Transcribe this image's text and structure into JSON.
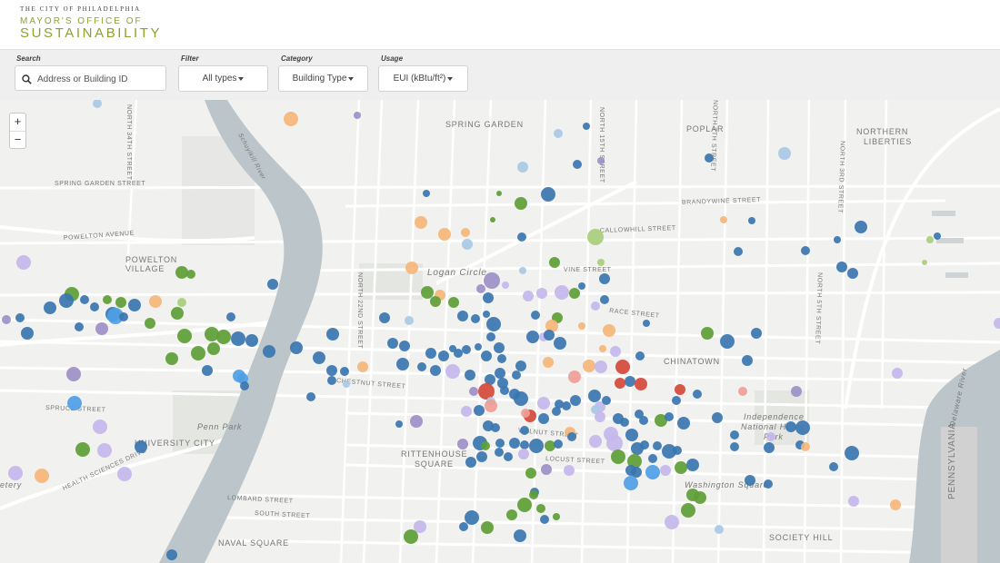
{
  "header": {
    "city": "THE CITY OF PHILADELPHIA",
    "office": "MAYOR'S OFFICE OF",
    "unit": "SUSTAINABILITY"
  },
  "controls": {
    "search": {
      "label": "Search",
      "placeholder": "Address or Building ID"
    },
    "filter": {
      "label": "Filter",
      "value": "All types"
    },
    "category": {
      "label": "Category",
      "value": "Building Type"
    },
    "usage": {
      "label": "Usage",
      "value": "EUI (kBtu/ft²)"
    }
  },
  "map": {
    "zoom_in": "+",
    "zoom_out": "−",
    "colors": {
      "water": "#bcc5c9",
      "road": "#ffffff",
      "park": "#e4e6e1",
      "label": "#777777"
    },
    "place_labels": [
      {
        "text": "SPRING GARDEN",
        "size": 9
      },
      {
        "text": "POPLAR",
        "size": 9
      },
      {
        "text": "NORTHERN",
        "size": 9
      },
      {
        "text": "LIBERTIES",
        "size": 9
      },
      {
        "text": "POWELTON",
        "size": 9
      },
      {
        "text": "VILLAGE",
        "size": 9
      },
      {
        "text": "Logan Circle",
        "size": 10,
        "italic": true
      },
      {
        "text": "CHINATOWN",
        "size": 9
      },
      {
        "text": "Independence",
        "size": 9,
        "italic": true
      },
      {
        "text": "National Hi",
        "size": 9,
        "italic": true
      },
      {
        "text": "Park",
        "size": 9,
        "italic": true
      },
      {
        "text": "Penn Park",
        "size": 9,
        "italic": true
      },
      {
        "text": "UNIVERSITY CITY",
        "size": 9
      },
      {
        "text": "RITTENHOUSE",
        "size": 9
      },
      {
        "text": "SQUARE",
        "size": 9
      },
      {
        "text": "Washington Square",
        "size": 9,
        "italic": true
      },
      {
        "text": "NAVAL SQUARE",
        "size": 9
      },
      {
        "text": "SOCIETY HILL",
        "size": 9
      },
      {
        "text": "etery",
        "size": 9,
        "italic": true
      },
      {
        "text": "POWELTON AVENUE",
        "size": 7
      },
      {
        "text": "SPRING GARDEN STREET",
        "size": 7
      },
      {
        "text": "BRANDYWINE STREET",
        "size": 7
      },
      {
        "text": "CALLOWHILL STREET",
        "size": 7
      },
      {
        "text": "VINE STREET",
        "size": 7
      },
      {
        "text": "RACE STREET",
        "size": 7
      },
      {
        "text": "CHESTNUT STREET",
        "size": 7
      },
      {
        "text": "WALNUT STREET",
        "size": 7
      },
      {
        "text": "SPRUCE STREET",
        "size": 7
      },
      {
        "text": "LOCUST STREET",
        "size": 7
      },
      {
        "text": "LOMBARD STREET",
        "size": 7
      },
      {
        "text": "SOUTH STREET",
        "size": 7
      },
      {
        "text": "Schuylkill River",
        "size": 7,
        "italic": true
      },
      {
        "text": "Delaware River",
        "size": 8,
        "italic": true
      },
      {
        "text": "PENNSYLVANIA",
        "size": 10
      },
      {
        "text": "HEALTH SCIENCES DRIVE",
        "size": 7
      },
      {
        "text": "NORTH 34TH STREET",
        "size": 7
      },
      {
        "text": "NORTH 22ND STREET",
        "size": 7
      },
      {
        "text": "NORTH 15TH STREET",
        "size": 7
      },
      {
        "text": "NORTH 7TH STREET",
        "size": 7
      },
      {
        "text": "NORTH 3RD STREET",
        "size": 7
      },
      {
        "text": "NORTH 5TH STREET",
        "size": 7
      }
    ],
    "legend_colors": {
      "dark_blue": "#3a76b0",
      "light_blue": "#4f9fe6",
      "pale_blue": "#a9c9e6",
      "green": "#5e9e36",
      "light_green": "#a9ce7a",
      "orange": "#f5b678",
      "lavender": "#c3b7ec",
      "purple": "#9d8fc6",
      "red": "#d6493a",
      "pink": "#ef9d97",
      "grey": "#c9c9c9"
    }
  }
}
